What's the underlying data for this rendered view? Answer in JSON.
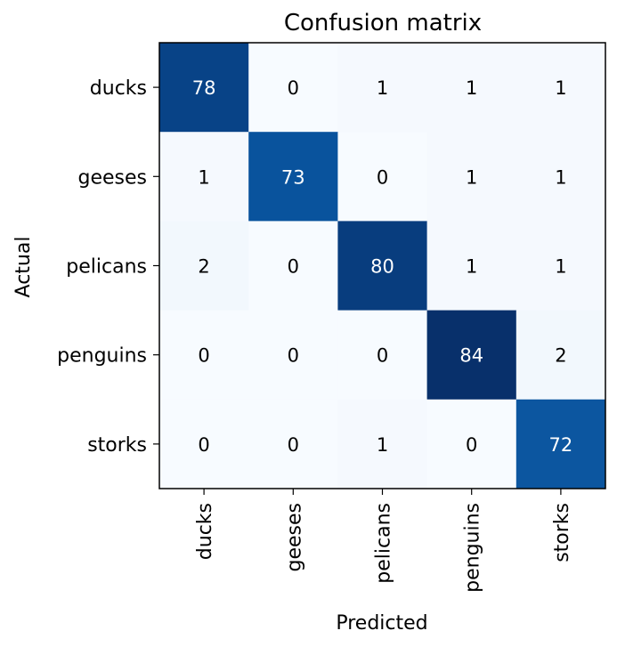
{
  "chart_data": {
    "type": "heatmap",
    "title": "Confusion matrix",
    "xlabel": "Predicted",
    "ylabel": "Actual",
    "x_categories": [
      "ducks",
      "geeses",
      "pelicans",
      "penguins",
      "storks"
    ],
    "y_categories": [
      "ducks",
      "geeses",
      "pelicans",
      "penguins",
      "storks"
    ],
    "values": [
      [
        78,
        0,
        1,
        1,
        1
      ],
      [
        1,
        73,
        0,
        1,
        1
      ],
      [
        2,
        0,
        80,
        1,
        1
      ],
      [
        0,
        0,
        0,
        84,
        2
      ],
      [
        0,
        0,
        1,
        0,
        72
      ]
    ],
    "colormap": "Blues",
    "text_color_light": "#ffffff",
    "text_color_dark": "#000000",
    "grid": false
  }
}
